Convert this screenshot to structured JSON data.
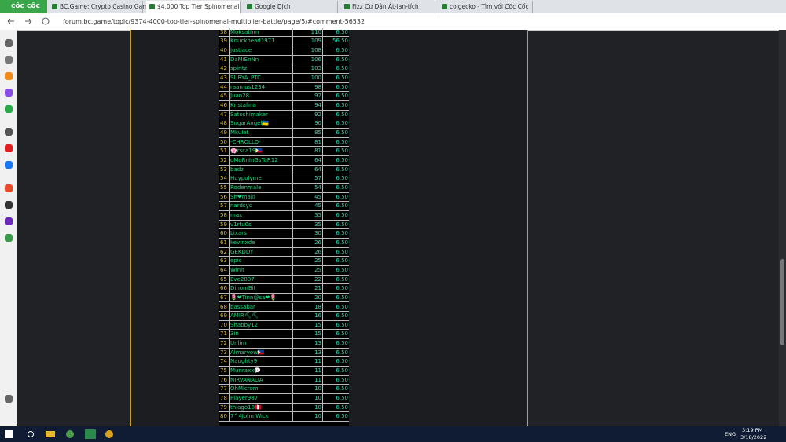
{
  "browser": {
    "brand": "cốc cốc",
    "tabs": [
      "BC.Game: Crypto Casino Gam",
      "$4,000 Top Tier Spinomenal",
      "Google Dịch",
      "Fizz Cư Dân Át-lan-tích",
      "coigecko - Tìm với Cốc Cốc"
    ],
    "url": "forum.bc.game/topic/9374-4000-top-tier-spinomenal-multiplier-battle/page/5/#comment-56532"
  },
  "table": {
    "rows": [
      [
        "38",
        "Moksathm",
        "110",
        "6.50"
      ],
      [
        "39",
        "Knuckhead1971",
        "109",
        "56.50"
      ],
      [
        "40",
        "justjace",
        "108",
        "6.50"
      ],
      [
        "41",
        "DaMiEnNn",
        "106",
        "6.50"
      ],
      [
        "42",
        "spiritz",
        "103",
        "6.50"
      ],
      [
        "43",
        "SURYA_PTC",
        "100",
        "6.50"
      ],
      [
        "44",
        "raamus1234",
        "98",
        "6.50"
      ],
      [
        "45",
        "Juan28",
        "97",
        "6.50"
      ],
      [
        "46",
        "Kristalina",
        "94",
        "6.50"
      ],
      [
        "47",
        "Satoshimaker",
        "92",
        "6.50"
      ],
      [
        "48",
        "SugarAngel🇺🇦",
        "90",
        "6.50"
      ],
      [
        "49",
        "Mkulet",
        "85",
        "6.50"
      ],
      [
        "50",
        "-CHROLLO-",
        "81",
        "6.50"
      ],
      [
        "51",
        "🌸rsca19🇵🇭",
        "81",
        "6.50"
      ],
      [
        "52",
        "oMoRnInGsTaR12",
        "64",
        "6.50"
      ],
      [
        "53",
        "badz",
        "64",
        "6.50"
      ],
      [
        "54",
        "Huypolyme",
        "57",
        "6.50"
      ],
      [
        "55",
        "Rodenmale",
        "54",
        "6.50"
      ],
      [
        "56",
        "Sh❤maki",
        "45",
        "6.50"
      ],
      [
        "57",
        "nardsyc",
        "45",
        "6.50"
      ],
      [
        "58",
        "max",
        "35",
        "6.50"
      ],
      [
        "59",
        "v1rtu0s",
        "35",
        "6.50"
      ],
      [
        "60",
        "Lixars",
        "30",
        "6.50"
      ],
      [
        "61",
        "kevinxde",
        "26",
        "6.50"
      ],
      [
        "62",
        "GEKDDY",
        "26",
        "6.50"
      ],
      [
        "63",
        "epic",
        "25",
        "6.50"
      ],
      [
        "64",
        "Winit",
        "25",
        "6.50"
      ],
      [
        "65",
        "Eve2807",
        "22",
        "6.50"
      ],
      [
        "66",
        "DinomBit",
        "21",
        "6.50"
      ],
      [
        "67",
        "🌷❤Tinn@sa❤🌷",
        "20",
        "6.50"
      ],
      [
        "68",
        "bassabar",
        "18",
        "6.50"
      ],
      [
        "69",
        "AMIR⛏⛏",
        "16",
        "6.50"
      ],
      [
        "70",
        "Shabby12",
        "15",
        "6.50"
      ],
      [
        "71",
        "3in",
        "15",
        "6.50"
      ],
      [
        "72",
        "Unlim",
        "13",
        "6.50"
      ],
      [
        "73",
        "Almaryow🇵🇭",
        "13",
        "6.50"
      ],
      [
        "74",
        "Naughty9",
        "11",
        "6.50"
      ],
      [
        "75",
        "Munraxx💬",
        "11",
        "6.50"
      ],
      [
        "76",
        "NIRVANALIA",
        "11",
        "6.50"
      ],
      [
        "77",
        "OhMicrom",
        "10",
        "6.50"
      ],
      [
        "78",
        "Player987",
        "10",
        "6.50"
      ],
      [
        "79",
        "thiago18🇵🇪",
        "10",
        "6.50"
      ],
      [
        "80",
        "7^4John Wick",
        "10",
        "6.50"
      ]
    ]
  },
  "taskbar": {
    "language": "ENG",
    "time": "3:19 PM",
    "date": "3/18/2022"
  }
}
